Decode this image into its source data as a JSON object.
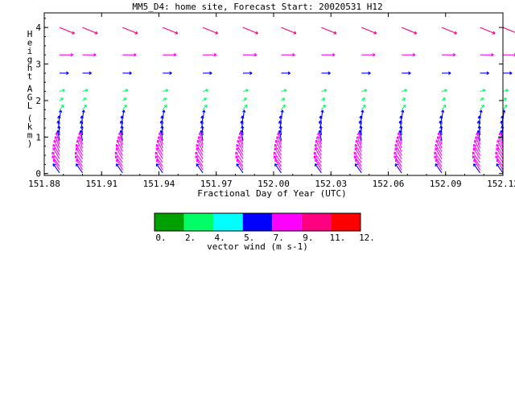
{
  "chart_data": {
    "type": "vector_field",
    "title": "MM5_D4: home site,  Forecast Start: 20020531 H12",
    "xlabel": "Fractional Day of Year (UTC)",
    "ylabel": "Height AGL (km)",
    "xlim": [
      151.88,
      152.12
    ],
    "ylim": [
      -0.05,
      4.4
    ],
    "x_ticks": [
      "151.88",
      "151.91",
      "151.94",
      "151.97",
      "152.00",
      "152.03",
      "152.06",
      "152.09",
      "152.12"
    ],
    "y_ticks": [
      "0",
      "1",
      "2",
      "3",
      "4"
    ],
    "profile_times": [
      151.888,
      151.9,
      151.921,
      151.942,
      151.963,
      151.984,
      152.004,
      152.025,
      152.046,
      152.067,
      152.088,
      152.108,
      152.12
    ],
    "levels": [
      {
        "height": 4.0,
        "speed": 9.5,
        "dir": -22
      },
      {
        "height": 3.25,
        "speed": 8.0,
        "dir": 0
      },
      {
        "height": 2.75,
        "speed": 5.3,
        "dir": 0
      },
      {
        "height": 2.25,
        "speed": 3.2,
        "dir": 15
      },
      {
        "height": 2.0,
        "speed": 2.5,
        "dir": 35
      },
      {
        "height": 1.75,
        "speed": 3.6,
        "dir": 50
      },
      {
        "height": 1.5,
        "speed": 5.2,
        "dir": 82
      },
      {
        "height": 1.35,
        "speed": 5.0,
        "dir": 95
      },
      {
        "height": 1.2,
        "speed": 5.3,
        "dir": 100
      },
      {
        "height": 1.05,
        "speed": 5.5,
        "dir": 95
      },
      {
        "height": 0.9,
        "speed": 6.2,
        "dir": 100
      },
      {
        "height": 0.8,
        "speed": 7.2,
        "dir": 105
      },
      {
        "height": 0.7,
        "speed": 7.3,
        "dir": 110
      },
      {
        "height": 0.6,
        "speed": 7.5,
        "dir": 115
      },
      {
        "height": 0.5,
        "speed": 7.5,
        "dir": 120
      },
      {
        "height": 0.4,
        "speed": 7.6,
        "dir": 120
      },
      {
        "height": 0.3,
        "speed": 7.6,
        "dir": 125
      },
      {
        "height": 0.2,
        "speed": 7.5,
        "dir": 125
      },
      {
        "height": 0.1,
        "speed": 7.2,
        "dir": 120
      },
      {
        "height": 0.02,
        "speed": 6.5,
        "dir": 125
      }
    ],
    "colorbar": {
      "label": "vector wind (m s-1)",
      "tick_labels": [
        "0.",
        "2.",
        "4.",
        "5.",
        "7.",
        "9.",
        "11.",
        "12."
      ],
      "bounds": [
        0,
        2,
        4,
        5,
        7,
        9,
        11,
        12
      ],
      "colors": [
        "#00a000",
        "#00ff66",
        "#00ffff",
        "#0000ff",
        "#ff00ff",
        "#ff0080",
        "#ff0000"
      ]
    }
  }
}
